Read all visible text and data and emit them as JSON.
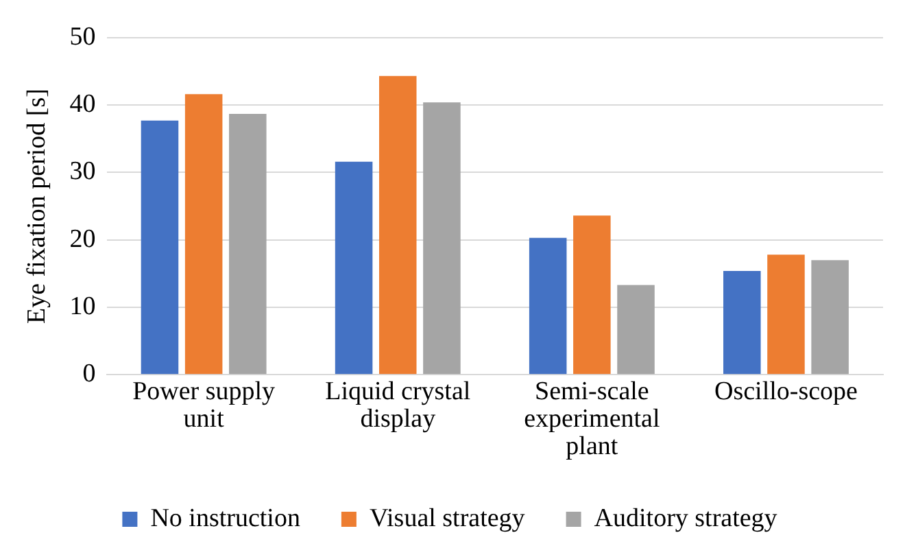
{
  "chart_data": {
    "type": "bar",
    "ylabel": "Eye fixation period [s]",
    "categories": [
      "Power supply unit",
      "Liquid crystal display",
      "Semi-scale experimental plant",
      "Oscillo-scope"
    ],
    "series": [
      {
        "name": "No instruction",
        "color": "#4472c4",
        "values": [
          37.7,
          31.6,
          20.3,
          15.4
        ]
      },
      {
        "name": "Visual strategy",
        "color": "#ed7d31",
        "values": [
          41.6,
          44.3,
          23.6,
          17.8
        ]
      },
      {
        "name": "Auditory strategy",
        "color": "#a5a5a5",
        "values": [
          38.7,
          40.4,
          13.3,
          17.0
        ]
      }
    ],
    "ylim": [
      0,
      50
    ],
    "yticks": [
      0,
      10,
      20,
      30,
      40,
      50
    ],
    "grid": "y",
    "legend": "bottom"
  }
}
